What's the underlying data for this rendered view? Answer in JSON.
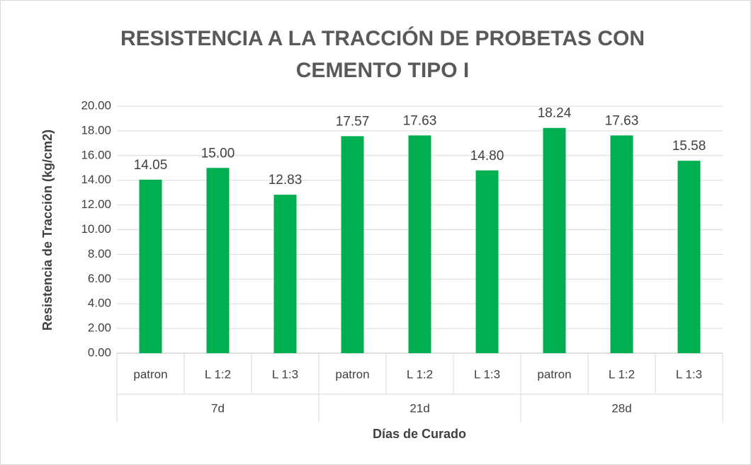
{
  "chart_data": {
    "type": "bar",
    "title": [
      "RESISTENCIA A LA TRACCIÓN DE PROBETAS CON",
      "CEMENTO TIPO I"
    ],
    "x_label": "Días de Curado",
    "y_label": "Resistencia de Tracción (kg/cm2)",
    "categories": [
      "patron",
      "L 1:2",
      "L 1:3",
      "patron",
      "L 1:2",
      "L 1:3",
      "patron",
      "L 1:2",
      "L 1:3"
    ],
    "groups": [
      "7d",
      "21d",
      "28d"
    ],
    "values": [
      14.05,
      15.0,
      12.83,
      17.57,
      17.63,
      14.8,
      18.24,
      17.63,
      15.58
    ],
    "value_labels": [
      "14.05",
      "15.00",
      "12.83",
      "17.57",
      "17.63",
      "14.80",
      "18.24",
      "17.63",
      "15.58"
    ],
    "color": "#00b050",
    "ylim": [
      0,
      20
    ],
    "yticks": [
      {
        "value": 0,
        "label": "0.00"
      },
      {
        "value": 2,
        "label": "2.00"
      },
      {
        "value": 4,
        "label": "4.00"
      },
      {
        "value": 6,
        "label": "6.00"
      },
      {
        "value": 8,
        "label": "8.00"
      },
      {
        "value": 10,
        "label": "10.00"
      },
      {
        "value": 12,
        "label": "12.00"
      },
      {
        "value": 14,
        "label": "14.00"
      },
      {
        "value": 16,
        "label": "16.00"
      },
      {
        "value": 18,
        "label": "18.00"
      },
      {
        "value": 20,
        "label": "20.00"
      }
    ],
    "grid": true
  }
}
